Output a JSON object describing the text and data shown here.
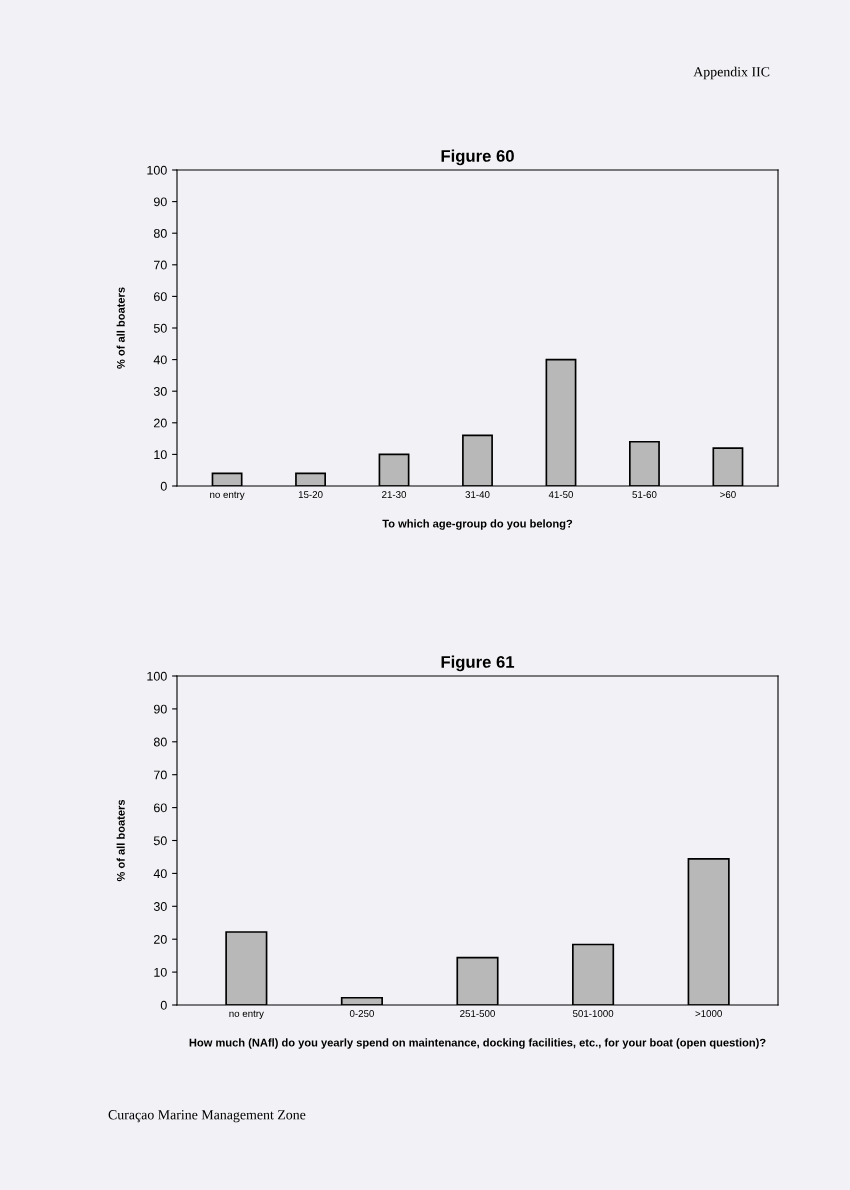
{
  "chart_data": [
    {
      "type": "bar",
      "title": "Figure 60",
      "xlabel": "To which age-group do you belong?",
      "ylabel": "% of all boaters",
      "categories": [
        "no entry",
        "15-20",
        "21-30",
        "31-40",
        "41-50",
        "51-60",
        ">60"
      ],
      "values": [
        4,
        4,
        10,
        16,
        40,
        14,
        12
      ],
      "color": "#b8b8b8",
      "ylim": [
        0,
        100
      ],
      "yticks": [
        0,
        10,
        20,
        30,
        40,
        50,
        60,
        70,
        80,
        90,
        100
      ],
      "grid": false,
      "annotations": [
        "Appendix IIC"
      ]
    },
    {
      "type": "bar",
      "title": "Figure 61",
      "xlabel": "How much (NAfl) do you yearly spend on maintenance, docking facilities, etc., for your boat (open question)?",
      "ylabel": "% of all boaters",
      "categories": [
        "no entry",
        "0-250",
        "251-500",
        "501-1000",
        ">1000"
      ],
      "values": [
        22.2,
        2.2,
        14.4,
        18.4,
        44.4
      ],
      "color": "#b8b8b8",
      "ylim": [
        0,
        100
      ],
      "yticks": [
        0,
        10,
        20,
        30,
        40,
        50,
        60,
        70,
        80,
        90,
        100
      ],
      "grid": false,
      "annotations": [
        "Curaçao Marine Management Zone"
      ]
    }
  ]
}
